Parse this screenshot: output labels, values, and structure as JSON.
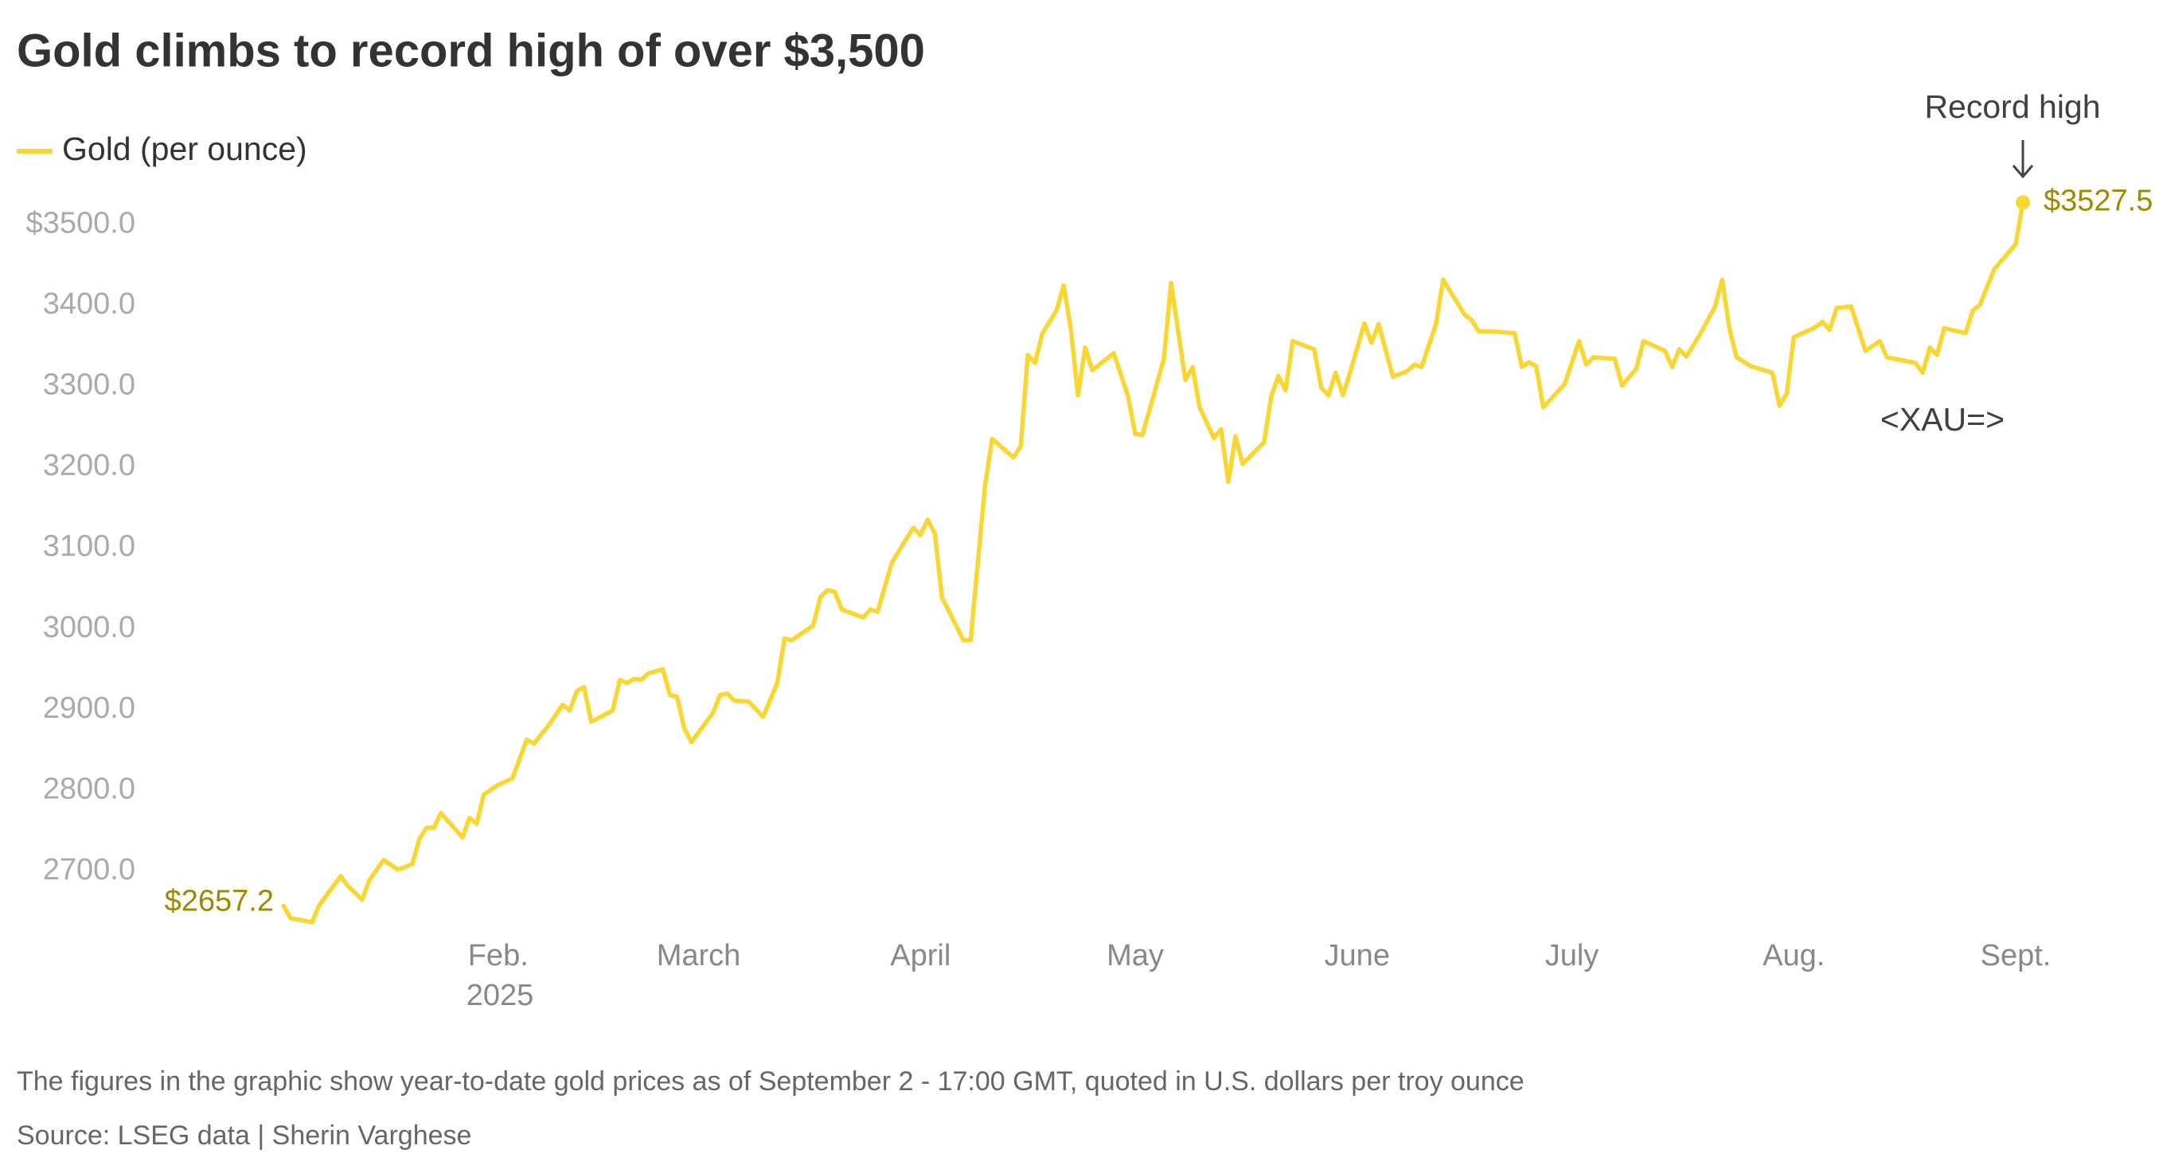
{
  "chart_data": {
    "type": "line",
    "title": "Gold climbs to record high of over $3,500",
    "x_year_label": "2025",
    "annotations": [
      "Record high",
      "<XAU=>"
    ],
    "note": "The figures in the graphic show year-to-date gold prices as of September 2 - 17:00 GMT, quoted in U.S. dollars per troy ounce",
    "source": "Source: LSEG data | Sherin Varghese",
    "grid": false,
    "legend": "top-left",
    "xlim": [
      2,
      245
    ],
    "xticks": [
      {
        "value": 32,
        "label": "Feb."
      },
      {
        "value": 60,
        "label": "March"
      },
      {
        "value": 91,
        "label": "April"
      },
      {
        "value": 121,
        "label": "May"
      },
      {
        "value": 152,
        "label": "June"
      },
      {
        "value": 182,
        "label": "July"
      },
      {
        "value": 213,
        "label": "Aug."
      },
      {
        "value": 244,
        "label": "Sept."
      }
    ],
    "ylim": [
      2630,
      3530
    ],
    "yticks": [
      {
        "value": 2700,
        "label": "2700.0"
      },
      {
        "value": 2800,
        "label": "2800.0"
      },
      {
        "value": 2900,
        "label": "2900.0"
      },
      {
        "value": 3000,
        "label": "3000.0"
      },
      {
        "value": 3100,
        "label": "3100.0"
      },
      {
        "value": 3200,
        "label": "3200.0"
      },
      {
        "value": 3300,
        "label": "3300.0"
      },
      {
        "value": 3400,
        "label": "3400.0"
      },
      {
        "value": 3500,
        "label": "$3500.0"
      }
    ],
    "x": [
      2,
      3,
      6,
      7,
      8,
      10,
      11,
      13,
      14,
      16,
      18,
      20,
      21,
      22,
      23,
      24,
      26,
      27,
      28,
      29,
      30,
      32,
      34,
      36,
      37,
      39,
      41,
      42,
      43,
      44,
      45,
      48,
      49,
      50,
      51,
      52,
      53,
      55,
      56,
      57,
      58,
      59,
      62,
      63,
      64,
      65,
      67,
      69,
      71,
      72,
      73,
      76,
      77,
      78,
      79,
      80,
      83,
      84,
      85,
      87,
      89,
      90,
      91,
      92,
      93,
      94,
      97,
      98,
      100,
      101,
      104,
      105,
      106,
      107,
      108,
      110,
      111,
      112,
      113,
      114,
      115,
      118,
      120,
      121,
      122,
      125,
      126,
      128,
      129,
      130,
      132,
      133,
      134,
      135,
      136,
      139,
      140,
      141,
      142,
      143,
      146,
      147,
      148,
      149,
      150,
      151,
      153,
      154,
      155,
      157,
      159,
      160,
      161,
      163,
      164,
      167,
      168,
      169,
      171,
      174,
      175,
      176,
      177,
      178,
      181,
      183,
      184,
      185,
      188,
      189,
      191,
      192,
      194,
      195,
      196,
      197,
      198,
      200,
      202,
      203,
      204,
      205,
      207,
      210,
      211,
      212,
      213,
      216,
      217,
      218,
      219,
      221,
      223,
      225,
      226,
      230,
      231,
      232,
      233,
      234,
      237,
      238,
      239,
      241,
      244,
      245
    ],
    "series": [
      {
        "name": "Gold (per ounce)",
        "color": "#fad633",
        "values": [
          2657.2,
          2642,
          2637,
          2658,
          2670,
          2694,
          2682,
          2665,
          2689,
          2714,
          2702,
          2709,
          2740,
          2754,
          2754,
          2772,
          2752,
          2742,
          2766,
          2759,
          2795,
          2807,
          2815,
          2863,
          2858,
          2880,
          2906,
          2899,
          2923,
          2928,
          2885,
          2899,
          2937,
          2933,
          2938,
          2937,
          2945,
          2950,
          2918,
          2916,
          2877,
          2860,
          2896,
          2918,
          2920,
          2911,
          2910,
          2891,
          2933,
          2988,
          2986,
          3004,
          3039,
          3048,
          3046,
          3024,
          3014,
          3024,
          3021,
          3082,
          3111,
          3125,
          3116,
          3135,
          3118,
          3039,
          2986,
          2986,
          3176,
          3235,
          3212,
          3226,
          3339,
          3329,
          3365,
          3394,
          3425,
          3371,
          3289,
          3348,
          3320,
          3341,
          3288,
          3241,
          3240,
          3334,
          3428,
          3308,
          3324,
          3274,
          3236,
          3247,
          3182,
          3238,
          3204,
          3231,
          3288,
          3313,
          3295,
          3356,
          3346,
          3298,
          3289,
          3317,
          3289,
          3317,
          3378,
          3354,
          3377,
          3312,
          3319,
          3327,
          3324,
          3377,
          3432,
          3389,
          3382,
          3368,
          3368,
          3366,
          3324,
          3330,
          3325,
          3274,
          3303,
          3356,
          3327,
          3336,
          3334,
          3301,
          3322,
          3356,
          3348,
          3344,
          3324,
          3346,
          3337,
          3366,
          3399,
          3432,
          3372,
          3336,
          3325,
          3317,
          3276,
          3291,
          3361,
          3373,
          3380,
          3370,
          3397,
          3399,
          3344,
          3356,
          3336,
          3329,
          3317,
          3348,
          3339,
          3372,
          3366,
          3394,
          3401,
          3445,
          3476,
          3527.5
        ],
        "value_labels": [
          "$2657.2",
          null,
          null,
          null,
          null,
          null,
          null,
          null,
          null,
          null,
          null,
          null,
          null,
          null,
          null,
          null,
          null,
          null,
          null,
          null,
          null,
          null,
          null,
          null,
          null,
          null,
          null,
          null,
          null,
          null,
          null,
          null,
          null,
          null,
          null,
          null,
          null,
          null,
          null,
          null,
          null,
          null,
          null,
          null,
          null,
          null,
          null,
          null,
          null,
          null,
          null,
          null,
          null,
          null,
          null,
          null,
          null,
          null,
          null,
          null,
          null,
          null,
          null,
          null,
          null,
          null,
          null,
          null,
          null,
          null,
          null,
          null,
          null,
          null,
          null,
          null,
          null,
          null,
          null,
          null,
          null,
          null,
          null,
          null,
          null,
          null,
          null,
          null,
          null,
          null,
          null,
          null,
          null,
          null,
          null,
          null,
          null,
          null,
          null,
          null,
          null,
          null,
          null,
          null,
          null,
          null,
          null,
          null,
          null,
          null,
          null,
          null,
          null,
          null,
          null,
          null,
          null,
          null,
          null,
          null,
          null,
          null,
          null,
          null,
          null,
          null,
          null,
          null,
          null,
          null,
          null,
          null,
          null,
          null,
          null,
          null,
          null,
          null,
          null,
          null,
          null,
          null,
          null,
          null,
          null,
          null,
          null,
          null,
          null,
          null,
          null,
          null,
          null,
          null,
          null,
          null,
          null,
          null,
          null,
          null,
          null,
          null,
          null,
          null,
          null,
          "$3527.5"
        ]
      }
    ]
  }
}
